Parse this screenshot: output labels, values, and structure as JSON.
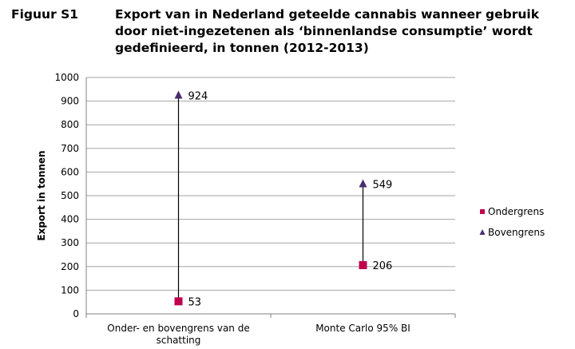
{
  "figure": {
    "label": "Figuur S1",
    "title": "Export van in Nederland geteelde cannabis wanneer gebruik door niet-ingezetenen als ‘binnenlandse consumptie’ wordt gedefinieerd, in tonnen (2012-2013)"
  },
  "chart_data": {
    "type": "scatter",
    "title": "Export van in Nederland geteelde cannabis wanneer gebruik door niet-ingezetenen als ‘binnenlandse consumptie’ wordt gedefinieerd, in tonnen (2012-2013)",
    "ylabel": "Export in tonnen",
    "xlabel": "",
    "ylim": [
      0,
      1000
    ],
    "yticks": [
      0,
      100,
      200,
      300,
      400,
      500,
      600,
      700,
      800,
      900,
      1000
    ],
    "grid": true,
    "legend_position": "right",
    "categories": [
      [
        "Onder- en bovengrens van de",
        "schatting"
      ],
      [
        "Monte Carlo 95% BI"
      ]
    ],
    "series": [
      {
        "name": "Ondergrens",
        "marker": "square",
        "color": "#C0004F",
        "values": [
          53,
          206
        ]
      },
      {
        "name": "Bovengrens",
        "marker": "triangle",
        "color": "#4B2C6E",
        "values": [
          924,
          549
        ]
      }
    ],
    "range_lines": true
  }
}
